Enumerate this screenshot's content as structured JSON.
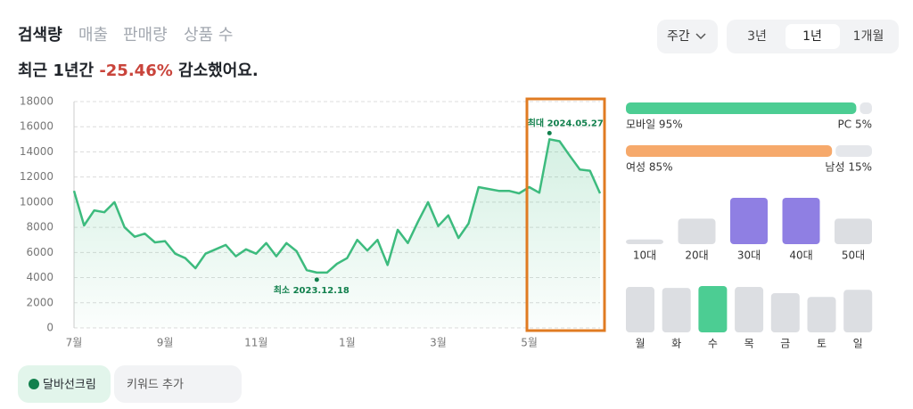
{
  "tabs": [
    "검색량",
    "매출",
    "판매량",
    "상품 수"
  ],
  "headline": {
    "prefix": "최근 1년간",
    "change": "-25.46%",
    "suffix": "감소했어요."
  },
  "period_select": "주간",
  "range_tabs": [
    "3년",
    "1년",
    "1개월"
  ],
  "chart_data": {
    "type": "area",
    "color": "#3dbb7e",
    "categories": [
      "7월",
      null,
      null,
      null,
      null,
      null,
      null,
      null,
      null,
      "9월",
      null,
      null,
      null,
      null,
      null,
      null,
      null,
      null,
      "11월",
      null,
      null,
      null,
      null,
      null,
      null,
      null,
      null,
      "1월",
      null,
      null,
      null,
      null,
      null,
      null,
      null,
      null,
      "3월",
      null,
      null,
      null,
      null,
      null,
      null,
      null,
      null,
      "5월",
      null,
      null,
      null,
      null,
      null,
      null,
      null
    ],
    "values": [
      10900,
      8150,
      9350,
      9200,
      10000,
      8000,
      7250,
      7500,
      6800,
      6900,
      5900,
      5550,
      4750,
      5900,
      6250,
      6600,
      5700,
      6250,
      5900,
      6750,
      5700,
      6750,
      6100,
      4600,
      4400,
      4400,
      5100,
      5550,
      7000,
      6150,
      7000,
      5000,
      7800,
      6750,
      8450,
      10000,
      8100,
      8950,
      7150,
      8300,
      11200,
      11050,
      10900,
      10900,
      10700,
      11200,
      10750,
      15000,
      14850,
      13700,
      12600,
      12500,
      10700
    ],
    "ylim": [
      0,
      18000
    ],
    "yticks": [
      0,
      2000,
      4000,
      6000,
      8000,
      10000,
      12000,
      14000,
      16000,
      18000
    ],
    "grid": true,
    "max_label": "최대 2024.05.27",
    "min_label": "최소 2023.12.18"
  },
  "device": [
    {
      "label": "모바일 95%",
      "value": 95,
      "color": "#4ccd93"
    },
    {
      "label": "PC 5%",
      "value": 5,
      "color": "#e5e7eb"
    }
  ],
  "gender": [
    {
      "label": "여성 85%",
      "value": 85,
      "color": "#f6a96b"
    },
    {
      "label": "남성 15%",
      "value": 15,
      "color": "#e5e7eb"
    }
  ],
  "age": {
    "categories": [
      "10대",
      "20대",
      "30대",
      "40대",
      "50대"
    ],
    "values": [
      10,
      55,
      100,
      100,
      55
    ],
    "colors": [
      "#dcdee2",
      "#dcdee2",
      "#8f7fe3",
      "#8f7fe3",
      "#dcdee2"
    ]
  },
  "weekday": {
    "categories": [
      "월",
      "화",
      "수",
      "목",
      "금",
      "토",
      "일"
    ],
    "values": [
      96,
      94,
      98,
      96,
      83,
      75,
      90
    ],
    "colors": [
      "#dcdee2",
      "#dcdee2",
      "#4ccd93",
      "#dcdee2",
      "#dcdee2",
      "#dcdee2",
      "#dcdee2"
    ]
  },
  "keywords": [
    "달바선크림"
  ],
  "add_keyword": "키워드 추가"
}
